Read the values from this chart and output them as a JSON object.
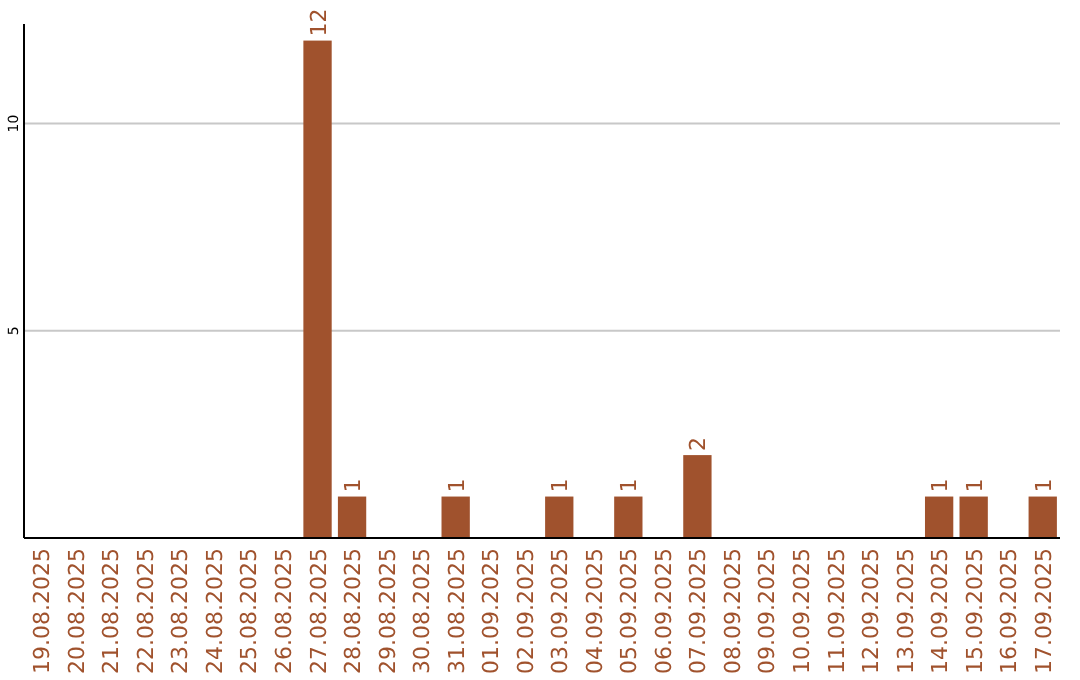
{
  "chart_data": {
    "type": "bar",
    "categories": [
      "19.08.2025",
      "20.08.2025",
      "21.08.2025",
      "22.08.2025",
      "23.08.2025",
      "24.08.2025",
      "25.08.2025",
      "26.08.2025",
      "27.08.2025",
      "28.08.2025",
      "29.08.2025",
      "30.08.2025",
      "31.08.2025",
      "01.09.2025",
      "02.09.2025",
      "03.09.2025",
      "04.09.2025",
      "05.09.2025",
      "06.09.2025",
      "07.09.2025",
      "08.09.2025",
      "09.09.2025",
      "10.09.2025",
      "11.09.2025",
      "12.09.2025",
      "13.09.2025",
      "14.09.2025",
      "15.09.2025",
      "16.09.2025",
      "17.09.2025"
    ],
    "values": [
      0,
      0,
      0,
      0,
      0,
      0,
      0,
      0,
      12,
      1,
      0,
      0,
      1,
      0,
      0,
      1,
      0,
      1,
      0,
      2,
      0,
      0,
      0,
      0,
      0,
      0,
      1,
      1,
      0,
      1
    ],
    "value_labels": [
      null,
      null,
      null,
      null,
      null,
      null,
      null,
      null,
      "12",
      "1",
      null,
      null,
      "1",
      null,
      null,
      "1",
      null,
      "1",
      null,
      "2",
      null,
      null,
      null,
      null,
      null,
      null,
      "1",
      "1",
      null,
      "1"
    ],
    "color": "#a0522d",
    "ylim": [
      0,
      12.4
    ],
    "yticks": [
      5,
      10
    ],
    "grid": "y"
  }
}
